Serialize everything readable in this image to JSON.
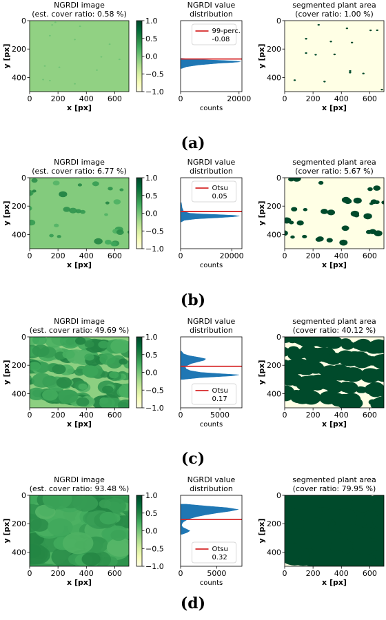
{
  "colors": {
    "colormap": [
      "#ffffe5",
      "#f7fcb9",
      "#d9f0a3",
      "#addd8e",
      "#78c679",
      "#41ab5d",
      "#238443",
      "#006837",
      "#004529"
    ],
    "hist_fill": "#1f77b4",
    "threshold_line": "#d62728",
    "seg_background": "#ffffe5",
    "seg_plant": "#004a2b"
  },
  "chart_data": [
    {
      "panel": "a",
      "label": "(a)",
      "ngrdi": {
        "type": "heatmap",
        "title": [
          "NGRDI image",
          "(est. cover ratio: 0.58 %)"
        ],
        "xlabel": "x [px]",
        "ylabel": "y [px]",
        "xlim": [
          0,
          700
        ],
        "ylim": [
          500,
          0
        ],
        "xticks": [
          0,
          200,
          400,
          600
        ],
        "yticks": [
          0,
          200,
          400
        ],
        "background_value": -0.12
      },
      "colorbar": {
        "ticks": [
          "1.0",
          "0.5",
          "0.0",
          "−0.5",
          "−1.0"
        ],
        "range": [
          -1.0,
          1.0
        ]
      },
      "histogram": {
        "type": "area",
        "title": [
          "NGRDI value",
          "distribution"
        ],
        "xlabel": "counts",
        "xlim": [
          0,
          21000
        ],
        "xticks": [
          "0",
          "20000"
        ],
        "ylim": [
          1.0,
          -1.0
        ],
        "bins_ngrdi": [
          -0.35,
          -0.3,
          -0.25,
          -0.2,
          -0.18,
          -0.16,
          -0.14,
          -0.12,
          -0.1,
          -0.08,
          -0.06
        ],
        "counts": [
          300,
          2000,
          6000,
          13000,
          17500,
          20500,
          19000,
          14000,
          7000,
          2500,
          400
        ],
        "threshold": -0.08,
        "legend": [
          "99-perc.",
          "-0.08"
        ],
        "legend_loc": "upper"
      },
      "segmented": {
        "type": "heatmap",
        "title": [
          "segmented plant area",
          "(cover ratio: 1.00 %)"
        ],
        "xlabel": "x [px]",
        "ylabel": "y [px]",
        "xlim": [
          0,
          700
        ],
        "ylim": [
          500,
          0
        ],
        "xticks": [
          0,
          200,
          400,
          600
        ],
        "yticks": [
          0,
          200,
          400
        ],
        "cover_ratio": 1.0
      }
    },
    {
      "panel": "b",
      "label": "(b)",
      "ngrdi": {
        "type": "heatmap",
        "title": [
          "NGRDI image",
          "(est. cover ratio: 6.77 %)"
        ],
        "xlabel": "x [px]",
        "ylabel": "y [px]",
        "xlim": [
          0,
          700
        ],
        "ylim": [
          500,
          0
        ],
        "xticks": [
          0,
          200,
          400,
          600
        ],
        "yticks": [
          0,
          200,
          400
        ],
        "background_value": -0.05
      },
      "colorbar": {
        "ticks": [
          "1.0",
          "0.5",
          "0.0",
          "−0.5",
          "−1.0"
        ],
        "range": [
          -1.0,
          1.0
        ]
      },
      "histogram": {
        "type": "area",
        "title": [
          "NGRDI value",
          "distribution"
        ],
        "xlabel": "counts",
        "xlim": [
          0,
          24000
        ],
        "xticks": [
          "0",
          "20000"
        ],
        "ylim": [
          1.0,
          -1.0
        ],
        "bins_ngrdi": [
          -0.25,
          -0.2,
          -0.16,
          -0.13,
          -0.1,
          -0.08,
          -0.06,
          -0.04,
          -0.02,
          0.0,
          0.05,
          0.15,
          0.3
        ],
        "counts": [
          200,
          1500,
          6000,
          14000,
          20500,
          23000,
          21000,
          15000,
          8000,
          3500,
          1200,
          600,
          300
        ],
        "threshold": 0.05,
        "legend": [
          "Otsu",
          "0.05"
        ],
        "legend_loc": "upper"
      },
      "segmented": {
        "type": "heatmap",
        "title": [
          "segmented plant area",
          "(cover ratio: 5.67 %)"
        ],
        "xlabel": "x [px]",
        "ylabel": "y [px]",
        "xlim": [
          0,
          700
        ],
        "ylim": [
          500,
          0
        ],
        "xticks": [
          0,
          200,
          400,
          600
        ],
        "yticks": [
          0,
          200,
          400
        ],
        "cover_ratio": 5.67
      }
    },
    {
      "panel": "c",
      "label": "(c)",
      "ngrdi": {
        "type": "heatmap",
        "title": [
          "NGRDI image",
          "(est. cover ratio: 49.69 %)"
        ],
        "xlabel": "x [px]",
        "ylabel": "y [px]",
        "xlim": [
          0,
          700
        ],
        "ylim": [
          500,
          0
        ],
        "xticks": [
          0,
          200,
          400,
          600
        ],
        "yticks": [
          0,
          200,
          400
        ],
        "background_value": -0.1
      },
      "colorbar": {
        "ticks": [
          "1.0",
          "0.5",
          "0.0",
          "−0.5",
          "−1.0"
        ],
        "range": [
          -1.0,
          1.0
        ]
      },
      "histogram": {
        "type": "area",
        "title": [
          "NGRDI value",
          "distribution"
        ],
        "xlabel": "counts",
        "xlim": [
          0,
          7800
        ],
        "xticks": [
          "0",
          "5000"
        ],
        "ylim": [
          1.0,
          -1.0
        ],
        "bins_ngrdi": [
          -0.2,
          -0.15,
          -0.1,
          -0.07,
          -0.04,
          0.0,
          0.05,
          0.1,
          0.15,
          0.2,
          0.25,
          0.3,
          0.34,
          0.38,
          0.42,
          0.47,
          0.52,
          0.6
        ],
        "counts": [
          300,
          2500,
          6500,
          7400,
          5200,
          2500,
          1200,
          700,
          600,
          900,
          1400,
          2300,
          3000,
          3200,
          2400,
          1100,
          400,
          100
        ],
        "threshold": 0.17,
        "legend": [
          "Otsu",
          "0.17"
        ],
        "legend_loc": "lower"
      },
      "segmented": {
        "type": "heatmap",
        "title": [
          "segmented plant area",
          "(cover ratio: 40.12 %)"
        ],
        "xlabel": "x [px]",
        "ylabel": "y [px]",
        "xlim": [
          0,
          700
        ],
        "ylim": [
          500,
          0
        ],
        "xticks": [
          0,
          200,
          400,
          600
        ],
        "yticks": [
          0,
          200,
          400
        ],
        "cover_ratio": 40.12
      }
    },
    {
      "panel": "d",
      "label": "(d)",
      "ngrdi": {
        "type": "heatmap",
        "title": [
          "NGRDI image",
          "(est. cover ratio: 93.48 %)"
        ],
        "xlabel": "x [px]",
        "ylabel": "y [px]",
        "xlim": [
          0,
          700
        ],
        "ylim": [
          500,
          0
        ],
        "xticks": [
          0,
          200,
          400,
          600
        ],
        "yticks": [
          0,
          200,
          400
        ],
        "background_value": 0.35
      },
      "colorbar": {
        "ticks": [
          "1.0",
          "0.5",
          "0.0",
          "−0.5",
          "−1.0"
        ],
        "range": [
          -1.0,
          1.0
        ]
      },
      "histogram": {
        "type": "area",
        "title": [
          "NGRDI value",
          "distribution"
        ],
        "xlabel": "counts",
        "xlim": [
          0,
          8500
        ],
        "xticks": [
          "0",
          "5000"
        ],
        "ylim": [
          1.0,
          -1.0
        ],
        "bins_ngrdi": [
          -0.1,
          -0.05,
          0.0,
          0.05,
          0.1,
          0.15,
          0.2,
          0.25,
          0.3,
          0.35,
          0.4,
          0.45,
          0.5,
          0.55,
          0.6,
          0.65,
          0.7,
          0.75
        ],
        "counts": [
          200,
          900,
          1300,
          800,
          300,
          150,
          200,
          400,
          800,
          1400,
          2300,
          3500,
          5000,
          6800,
          8000,
          6500,
          3500,
          800
        ],
        "threshold": 0.32,
        "legend": [
          "Otsu",
          "0.32"
        ],
        "legend_loc": "lower"
      },
      "segmented": {
        "type": "heatmap",
        "title": [
          "segmented plant area",
          "(cover ratio: 79.95 %)"
        ],
        "xlabel": "x [px]",
        "ylabel": "y [px]",
        "xlim": [
          0,
          700
        ],
        "ylim": [
          500,
          0
        ],
        "xticks": [
          0,
          200,
          400,
          600
        ],
        "yticks": [
          0,
          200,
          400
        ],
        "cover_ratio": 79.95
      }
    }
  ]
}
